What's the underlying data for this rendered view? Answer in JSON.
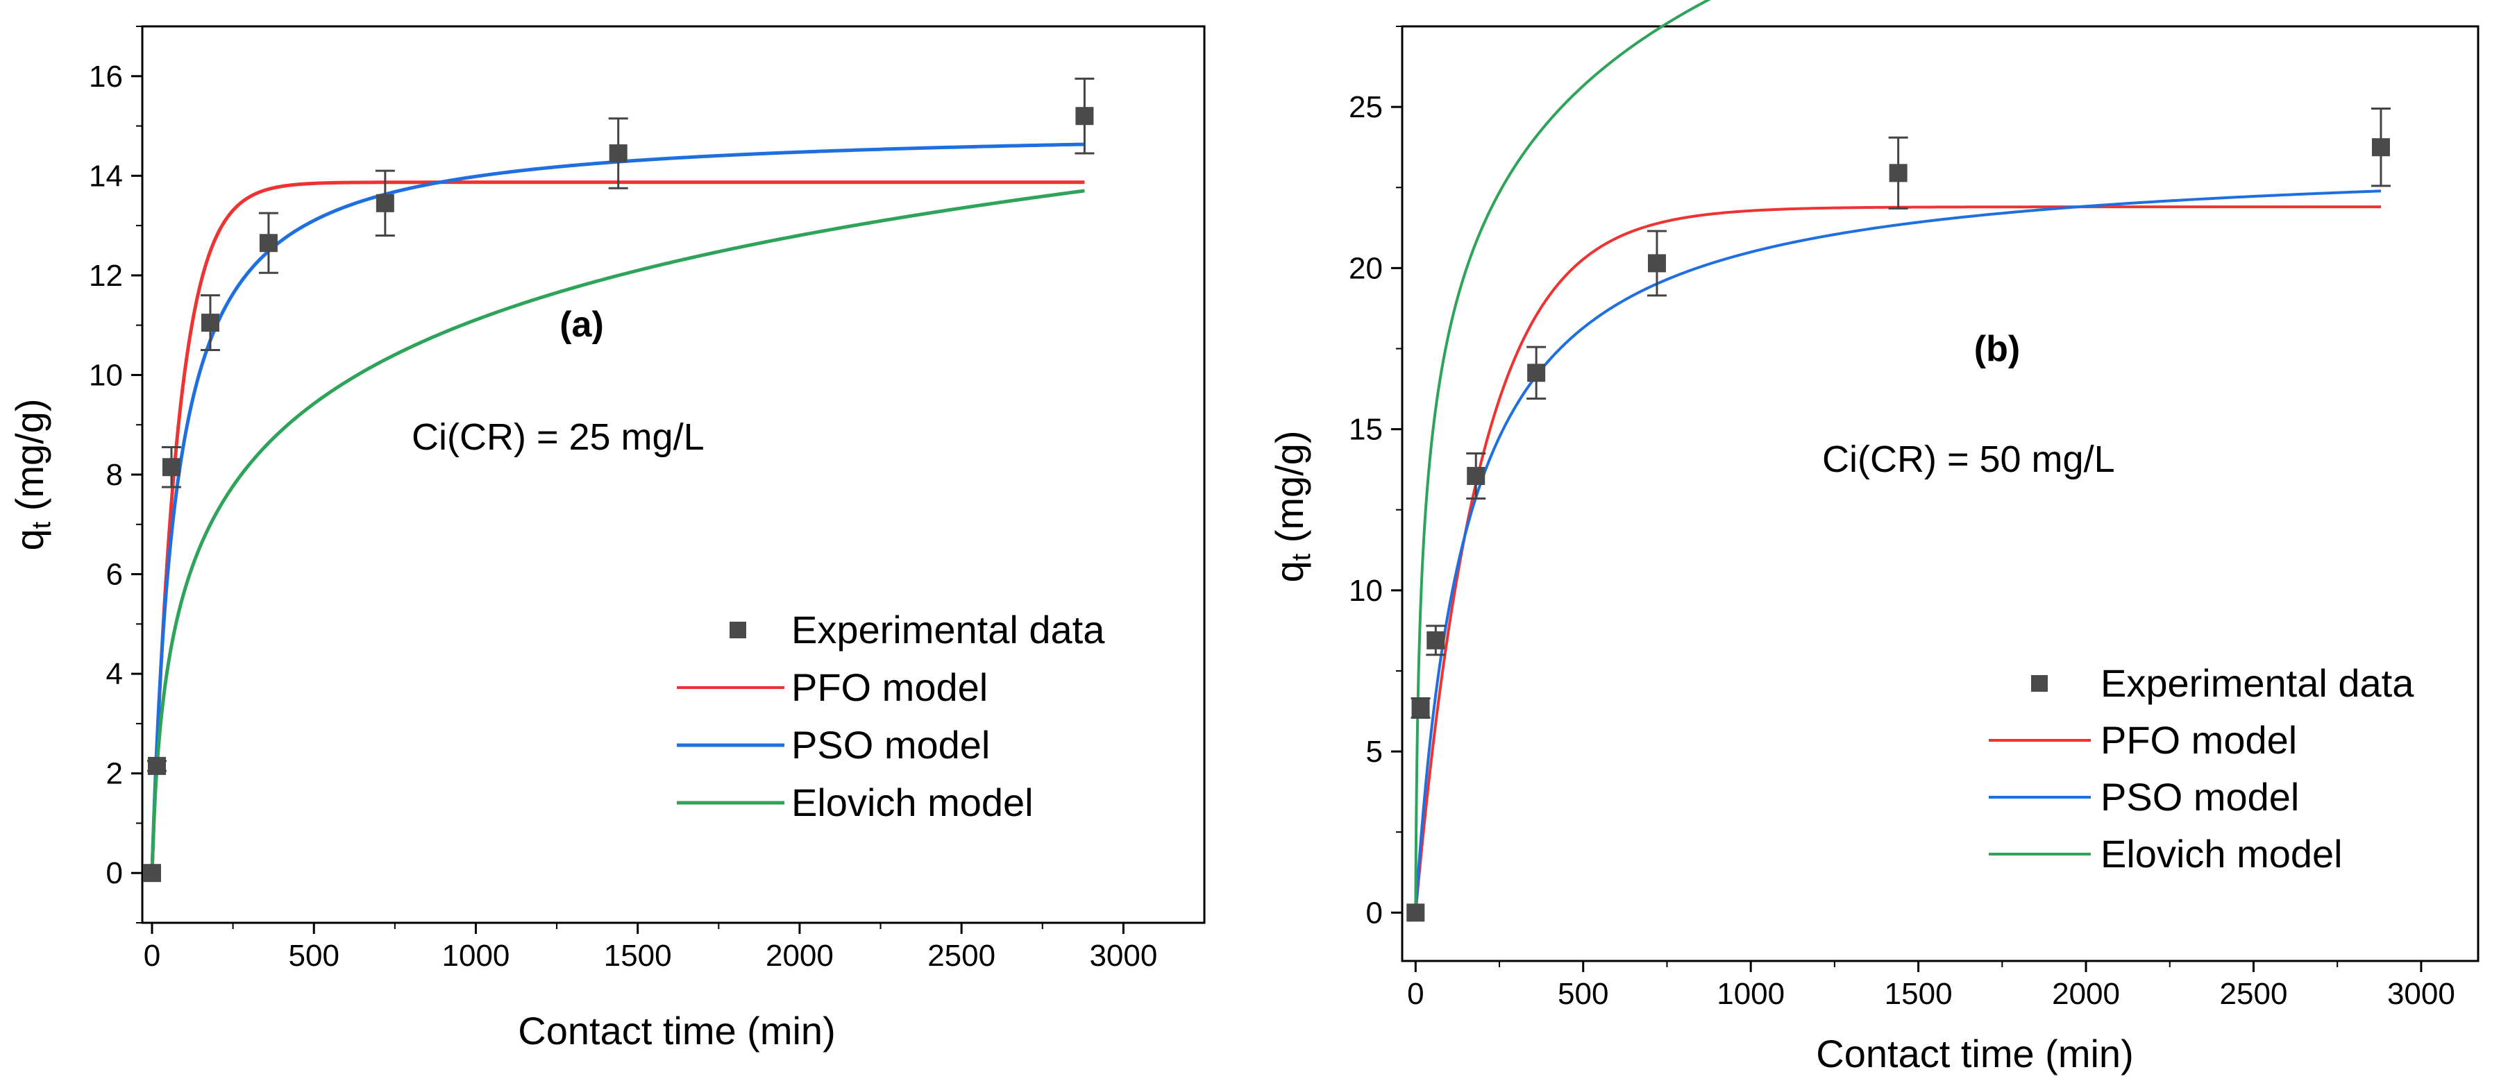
{
  "chart_data": [
    {
      "type": "scatter",
      "panel_label": "(a)",
      "annotation": "Ci(CR) = 25 mg/L",
      "xlabel": "Contact time (min)",
      "ylabel_main": "q",
      "ylabel_sub": "t",
      "ylabel_unit": " (mg/g)",
      "xlim": [
        -30,
        3250
      ],
      "ylim": [
        -1,
        17
      ],
      "xticks": [
        0,
        500,
        1000,
        1500,
        2000,
        2500,
        3000
      ],
      "yticks": [
        0,
        2,
        4,
        6,
        8,
        10,
        12,
        14,
        16
      ],
      "minor_y": 1,
      "minor_x": 250,
      "legend_position": "bottom-right",
      "experimental": {
        "name": "Experimental data",
        "color": "#4a4a4a",
        "x": [
          0,
          15,
          60,
          180,
          360,
          720,
          1440,
          2880
        ],
        "y": [
          0.0,
          2.15,
          8.15,
          11.05,
          12.65,
          13.45,
          14.45,
          15.2
        ],
        "err": [
          0.0,
          0.1,
          0.4,
          0.55,
          0.6,
          0.65,
          0.7,
          0.75
        ]
      },
      "series": [
        {
          "name": "PFO model",
          "color": "#ee3333",
          "model": "pfo",
          "params": {
            "qe": 13.87,
            "k": 0.0128
          }
        },
        {
          "name": "PSO model",
          "color": "#1f6fe0",
          "model": "pso",
          "params": {
            "qe": 15.0,
            "k": 0.00092
          }
        },
        {
          "name": "Elovich model",
          "color": "#2ea35a",
          "model": "elovich",
          "params": {
            "a": 0.22,
            "b": 0.4053
          }
        }
      ]
    },
    {
      "type": "scatter",
      "panel_label": "(b)",
      "annotation": "Ci(CR) = 50 mg/L",
      "xlabel": "Contact time (min)",
      "ylabel_main": "q",
      "ylabel_sub": "t",
      "ylabel_unit": " (mg/g)",
      "xlim": [
        -40,
        3170
      ],
      "ylim": [
        -1.5,
        27.5
      ],
      "xticks": [
        0,
        500,
        1000,
        1500,
        2000,
        2500,
        3000
      ],
      "yticks": [
        0,
        5,
        10,
        15,
        20,
        25
      ],
      "minor_y": 2.5,
      "minor_x": 250,
      "legend_position": "bottom-right",
      "experimental": {
        "name": "Experimental data",
        "color": "#4a4a4a",
        "x": [
          0,
          15,
          60,
          180,
          360,
          720,
          1440,
          2880
        ],
        "y": [
          0.0,
          6.35,
          8.45,
          13.55,
          16.75,
          20.15,
          22.95,
          23.75
        ],
        "err": [
          0.0,
          0.3,
          0.45,
          0.7,
          0.8,
          1.0,
          1.1,
          1.2
        ]
      },
      "series": [
        {
          "name": "PFO model",
          "color": "#ee3333",
          "model": "pfo",
          "params": {
            "qe": 21.9,
            "k": 0.0052
          }
        },
        {
          "name": "PSO model",
          "color": "#1f6fe0",
          "model": "pso",
          "params": {
            "qe": 23.55,
            "k": 0.000285
          }
        },
        {
          "name": "Elovich model",
          "color": "#2ea35a",
          "model": "elovich",
          "params": {
            "a": 2.0,
            "b": 0.2083
          }
        }
      ]
    }
  ]
}
